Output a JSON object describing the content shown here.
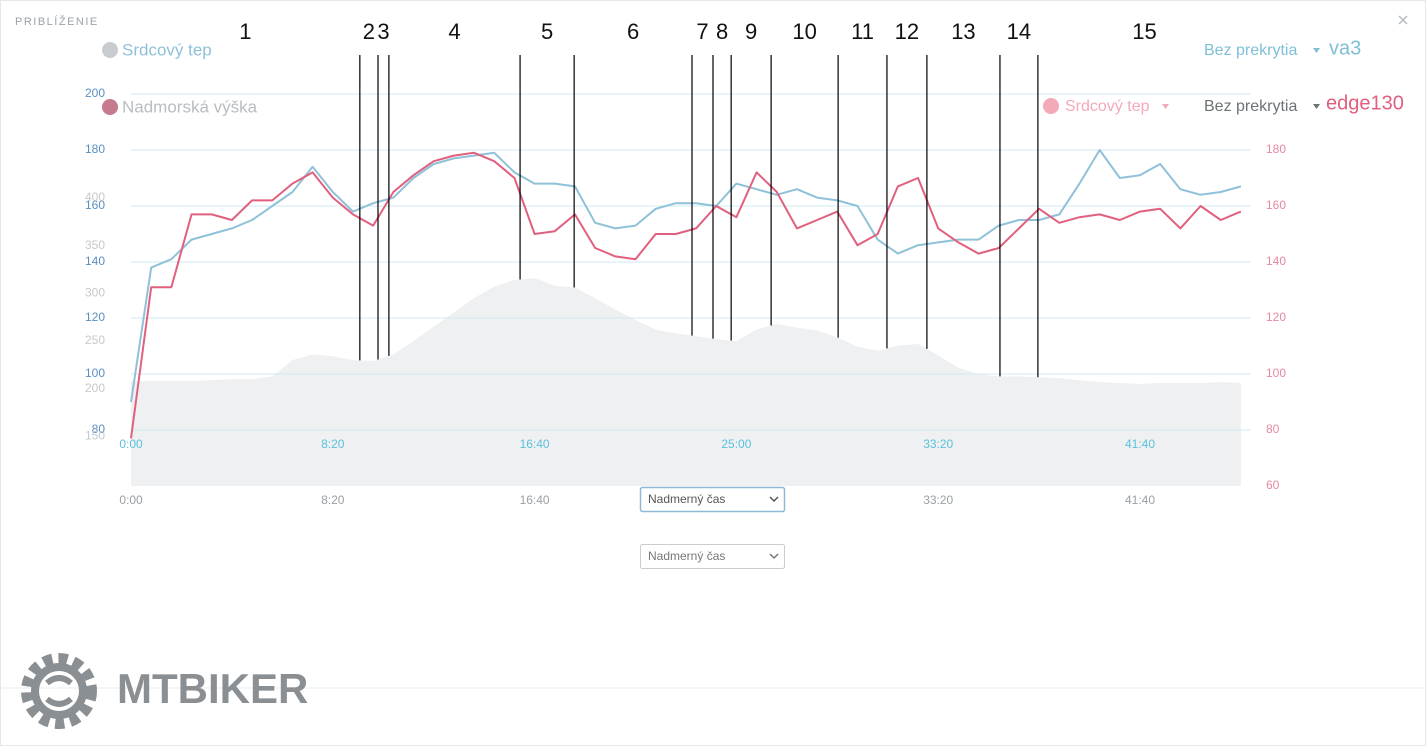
{
  "header": {
    "title": "PRIBLÍŽENIE"
  },
  "chart_data": {
    "type": "line",
    "x": [
      0,
      50,
      100,
      150,
      200,
      250,
      300,
      350,
      400,
      450,
      500,
      550,
      600,
      650,
      700,
      750,
      800,
      850,
      900,
      950,
      1000,
      1050,
      1100,
      1150,
      1200,
      1250,
      1300,
      1350,
      1400,
      1450,
      1500,
      1550,
      1600,
      1650,
      1700,
      1750,
      1800,
      1850,
      1900,
      1950,
      2000,
      2050,
      2100,
      2150,
      2200,
      2250,
      2300,
      2350,
      2400,
      2450,
      2500,
      2550,
      2600,
      2650,
      2700,
      2750
    ],
    "xlim": [
      0,
      2775
    ],
    "xticks": [
      {
        "value": 0,
        "label": "0:00"
      },
      {
        "value": 500,
        "label": "8:20"
      },
      {
        "value": 1000,
        "label": "16:40"
      },
      {
        "value": 1500,
        "label": "25:00"
      },
      {
        "value": 2000,
        "label": "33:20"
      },
      {
        "value": 2500,
        "label": "41:40"
      }
    ],
    "ylim": [
      60,
      200
    ],
    "yticks": [
      80,
      100,
      120,
      140,
      160,
      180,
      200
    ],
    "y2lim": [
      60,
      200
    ],
    "y2ticks": [
      60,
      80,
      100,
      120,
      140,
      160,
      180
    ],
    "y3lim": [
      98,
      509
    ],
    "y3ticks": [
      150,
      200,
      250,
      300,
      350,
      400
    ],
    "grid": true,
    "series": [
      {
        "name": "Srdcový tep",
        "device": "va3",
        "color": "#8fc1d9",
        "values": [
          90,
          138,
          141,
          148,
          150,
          152,
          155,
          160,
          165,
          174,
          165,
          158,
          161,
          163,
          170,
          175,
          177,
          178,
          179,
          172,
          168,
          168,
          167,
          154,
          152,
          153,
          159,
          161,
          161,
          160,
          168,
          166,
          164,
          166,
          163,
          162,
          160,
          148,
          143,
          146,
          147,
          148,
          148,
          153,
          155,
          155,
          157,
          168,
          180,
          170,
          171,
          175,
          166,
          164,
          165,
          167
        ]
      },
      {
        "name": "Srdcový tep",
        "device": "edge130",
        "color": "#e0607e",
        "axis": "y2",
        "values": [
          77,
          131,
          131,
          157,
          157,
          155,
          162,
          162,
          168,
          172,
          163,
          157,
          153,
          165,
          171,
          176,
          178,
          179,
          176,
          170,
          150,
          151,
          157,
          145,
          142,
          141,
          150,
          150,
          152,
          160,
          156,
          172,
          165,
          152,
          155,
          158,
          146,
          150,
          167,
          170,
          152,
          147,
          143,
          145,
          152,
          159,
          154,
          156,
          157,
          155,
          158,
          159,
          152,
          160,
          155,
          158
        ]
      },
      {
        "name": "Nadmorská výška",
        "color": "#eef0f2",
        "axis": "y3",
        "values": [
          208,
          208,
          208,
          208,
          209,
          210,
          210,
          213,
          230,
          236,
          234,
          230,
          229,
          236,
          250,
          265,
          280,
          295,
          307,
          314,
          316,
          308,
          306,
          295,
          283,
          272,
          262,
          258,
          255,
          252,
          250,
          262,
          268,
          264,
          261,
          254,
          244,
          240,
          245,
          247,
          235,
          222,
          215,
          213,
          213,
          212,
          211,
          209,
          207,
          206,
          205,
          206,
          206,
          206,
          207,
          206
        ]
      }
    ],
    "segments": {
      "labels": [
        "1",
        "2",
        "3",
        "4",
        "5",
        "6",
        "7",
        "8",
        "9",
        "10",
        "11",
        "12",
        "13",
        "14",
        "15"
      ],
      "boundaries": [
        567,
        612,
        639,
        964,
        1098,
        1390,
        1442,
        1487,
        1586,
        1752,
        1873,
        1972,
        2153,
        2247
      ]
    }
  },
  "controls": {
    "overlay": [
      "Bez prekrytia",
      "Bez prekrytia"
    ],
    "selects": [
      "Nadmerný čas",
      "Nadmerný čas"
    ]
  },
  "watermark": "MTBIKER"
}
